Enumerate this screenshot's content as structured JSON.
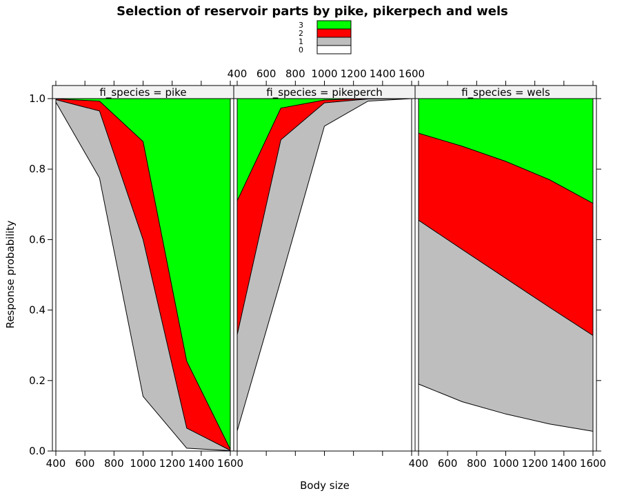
{
  "chart_data": {
    "type": "area",
    "title": "Selection of reservoir parts by pike, pikerpech and wels",
    "xlabel": "Body size",
    "ylabel": "Response probability",
    "xlim": [
      400,
      1600
    ],
    "ylim": [
      0,
      1
    ],
    "x_ticks": [
      400,
      600,
      800,
      1000,
      1200,
      1400,
      1600
    ],
    "y_ticks": [
      "0.0",
      "0.2",
      "0.4",
      "0.6",
      "0.8",
      "1.0"
    ],
    "legend": {
      "placement": "top-center",
      "entries": [
        {
          "label": "3",
          "color": "#00ff00"
        },
        {
          "label": "2",
          "color": "#ff0000"
        },
        {
          "label": "1",
          "color": "#bebebe"
        },
        {
          "label": "0",
          "color": "#ffffff"
        }
      ]
    },
    "panels": [
      {
        "strip": "fi_species = pike",
        "x": [
          400,
          700,
          1000,
          1300,
          1600
        ],
        "cumulative": [
          {
            "level": "0",
            "values": [
              0.99,
              0.775,
              0.155,
              0.008,
              0.001
            ]
          },
          {
            "level": "1",
            "values": [
              0.997,
              0.965,
              0.6,
              0.065,
              0.002
            ]
          },
          {
            "level": "2",
            "values": [
              0.999,
              0.993,
              0.878,
              0.255,
              0.005
            ]
          },
          {
            "level": "3",
            "values": [
              1,
              1,
              1,
              1,
              1
            ]
          }
        ]
      },
      {
        "strip": "fi_species = pikeperch",
        "x": [
          400,
          700,
          1000,
          1300,
          1600
        ],
        "cumulative": [
          {
            "level": "0",
            "values": [
              0.057,
              0.485,
              0.922,
              0.993,
              1.0
            ]
          },
          {
            "level": "1",
            "values": [
              0.33,
              0.883,
              0.988,
              0.999,
              1.0
            ]
          },
          {
            "level": "2",
            "values": [
              0.71,
              0.973,
              0.996,
              1.0,
              1.0
            ]
          },
          {
            "level": "3",
            "values": [
              1,
              1,
              1,
              1,
              1
            ]
          }
        ]
      },
      {
        "strip": "fi_species = wels",
        "x": [
          400,
          700,
          1000,
          1300,
          1600
        ],
        "cumulative": [
          {
            "level": "0",
            "values": [
              0.19,
              0.14,
              0.105,
              0.077,
              0.056
            ]
          },
          {
            "level": "1",
            "values": [
              0.655,
              0.572,
              0.49,
              0.408,
              0.328
            ]
          },
          {
            "level": "2",
            "values": [
              0.902,
              0.865,
              0.822,
              0.77,
              0.703
            ]
          },
          {
            "level": "3",
            "values": [
              1,
              1,
              1,
              1,
              1
            ]
          }
        ]
      }
    ]
  }
}
